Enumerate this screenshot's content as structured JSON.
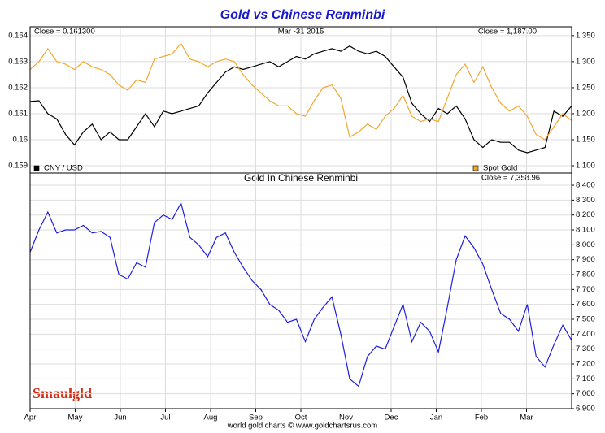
{
  "chart_data": [
    {
      "type": "line",
      "title": "Gold vs Chinese Renminbi",
      "annotations": {
        "close_left": "Close = 0.161300",
        "date": "Mar -31 2015",
        "close_right": "Close = 1,187.00"
      },
      "series": [
        {
          "name": "CNY / USD",
          "color": "#000000",
          "axis": "y",
          "values": [
            0.16147,
            0.1615,
            0.161,
            0.1608,
            0.1602,
            0.1598,
            0.1603,
            0.1606,
            0.16,
            0.1603,
            0.16,
            0.16,
            0.1605,
            0.161,
            0.1605,
            0.1611,
            0.161,
            0.1611,
            0.1612,
            0.1613,
            0.1618,
            0.1622,
            0.1626,
            0.1628,
            0.1627,
            0.1628,
            0.1629,
            0.163,
            0.1628,
            0.163,
            0.1632,
            0.1631,
            0.1633,
            0.1634,
            0.1635,
            0.1634,
            0.1636,
            0.1634,
            0.1633,
            0.1634,
            0.1632,
            0.1628,
            0.1624,
            0.1614,
            0.161,
            0.1607,
            0.1612,
            0.161,
            0.1613,
            0.1608,
            0.16,
            0.1597,
            0.16,
            0.1599,
            0.1599,
            0.1596,
            0.1595,
            0.1596,
            0.1597,
            0.1611,
            0.1609,
            0.1613
          ]
        },
        {
          "name": "Spot Gold",
          "color": "#f0a830",
          "axis": "y2",
          "values": [
            1285,
            1300,
            1325,
            1300,
            1295,
            1285,
            1300,
            1290,
            1285,
            1275,
            1255,
            1245,
            1265,
            1260,
            1305,
            1310,
            1315,
            1335,
            1305,
            1300,
            1290,
            1300,
            1305,
            1300,
            1275,
            1255,
            1240,
            1225,
            1215,
            1215,
            1200,
            1195,
            1225,
            1250,
            1255,
            1230,
            1155,
            1165,
            1180,
            1170,
            1195,
            1210,
            1235,
            1195,
            1185,
            1190,
            1185,
            1230,
            1275,
            1295,
            1260,
            1290,
            1250,
            1220,
            1205,
            1215,
            1195,
            1160,
            1150,
            1175,
            1200,
            1187
          ]
        }
      ],
      "ylim": [
        0.15872,
        0.16434
      ],
      "yticks": [
        0.159,
        0.16,
        0.161,
        0.162,
        0.163,
        0.164
      ],
      "y2lim": [
        1086,
        1367
      ],
      "y2ticks": [
        {
          "value": 1100,
          "label": "1,100"
        },
        {
          "value": 1150,
          "label": "1,150"
        },
        {
          "value": 1200,
          "label": "1,200"
        },
        {
          "value": 1250,
          "label": "1,250"
        },
        {
          "value": 1300,
          "label": "1,300"
        },
        {
          "value": 1350,
          "label": "1,350"
        }
      ],
      "grid": true
    },
    {
      "type": "line",
      "title": "Gold In Chinese Renminbi",
      "annotations": {
        "close_right": "Close = 7,358.96"
      },
      "xtick_labels": [
        "Apr",
        "May",
        "Jun",
        "Jul",
        "Aug",
        "Sep",
        "Oct",
        "Nov",
        "Dec",
        "Jan",
        "Feb",
        "Mar"
      ],
      "series": [
        {
          "name": "Gold In Chinese Renminbi",
          "color": "#1f1fe0",
          "values": [
            7950,
            8100,
            8220,
            8080,
            8100,
            8100,
            8130,
            8080,
            8090,
            8050,
            7800,
            7770,
            7880,
            7850,
            8150,
            8200,
            8170,
            8280,
            8050,
            8000,
            7920,
            8050,
            8080,
            7950,
            7850,
            7760,
            7700,
            7600,
            7560,
            7480,
            7500,
            7350,
            7500,
            7580,
            7650,
            7400,
            7100,
            7050,
            7250,
            7320,
            7300,
            7450,
            7600,
            7350,
            7480,
            7420,
            7280,
            7580,
            7900,
            8060,
            7980,
            7870,
            7700,
            7540,
            7500,
            7420,
            7600,
            7250,
            7180,
            7330,
            7460,
            7359
          ]
        }
      ],
      "ylim": [
        6900,
        8482
      ],
      "y2ticks": [
        {
          "value": 6900,
          "label": "6,900"
        },
        {
          "value": 7000,
          "label": "7,000"
        },
        {
          "value": 7100,
          "label": "7,100"
        },
        {
          "value": 7200,
          "label": "7,200"
        },
        {
          "value": 7300,
          "label": "7,300"
        },
        {
          "value": 7400,
          "label": "7,400"
        },
        {
          "value": 7500,
          "label": "7,500"
        },
        {
          "value": 7600,
          "label": "7,600"
        },
        {
          "value": 7700,
          "label": "7,700"
        },
        {
          "value": 7800,
          "label": "7,800"
        },
        {
          "value": 7900,
          "label": "7,900"
        },
        {
          "value": 8000,
          "label": "8,000"
        },
        {
          "value": 8100,
          "label": "8,100"
        },
        {
          "value": 8200,
          "label": "8,200"
        },
        {
          "value": 8300,
          "label": "8,300"
        },
        {
          "value": 8400,
          "label": "8,400"
        }
      ],
      "grid": true
    }
  ],
  "source": "world gold charts © www.goldchartsrus.com",
  "logo": "Smaulgld"
}
